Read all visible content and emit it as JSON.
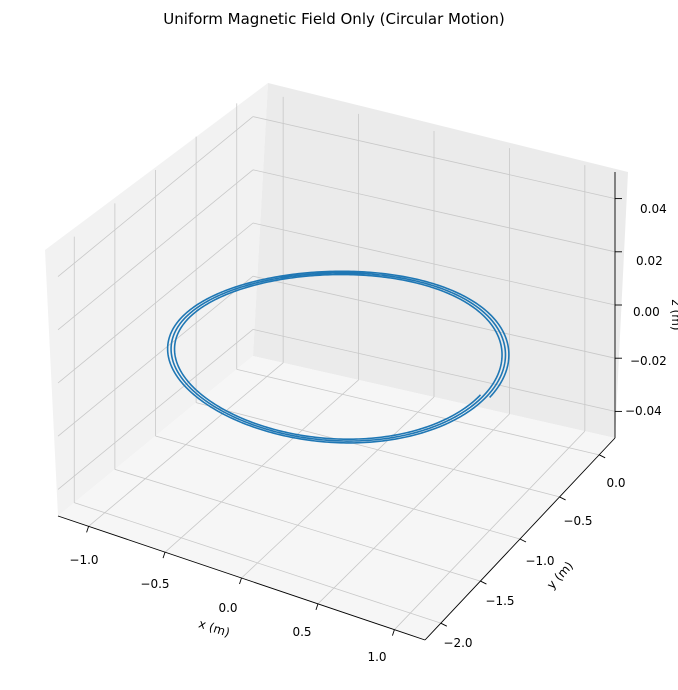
{
  "chart_data": {
    "type": "line",
    "projection": "3d",
    "title": "Uniform Magnetic Field Only (Circular Motion)",
    "xlabel": "x (m)",
    "ylabel": "y (m)",
    "zlabel": "z (m)",
    "xlim": [
      -1.2,
      1.2
    ],
    "ylim": [
      -2.2,
      0.2
    ],
    "zlim": [
      -0.05,
      0.05
    ],
    "x_ticks": [
      "−1.0",
      "−0.5",
      "0.0",
      "0.5",
      "1.0"
    ],
    "y_ticks": [
      "0.0",
      "−0.5",
      "−1.0",
      "−1.5",
      "−2.0"
    ],
    "z_ticks": [
      "0.04",
      "0.02",
      "0.00",
      "−0.02",
      "−0.04"
    ],
    "grid": true,
    "series": [
      {
        "color": "#1f77b4",
        "description": "circular trajectory in the z=0 plane, center (0,-1), radius 1, approx. 3 slightly drifting turns",
        "x_start": 1.0,
        "y_start": -1.0,
        "z": 0.0,
        "center_x": 0.0,
        "center_y": -1.0,
        "radius": 1.0,
        "turns": 3.0
      }
    ]
  }
}
